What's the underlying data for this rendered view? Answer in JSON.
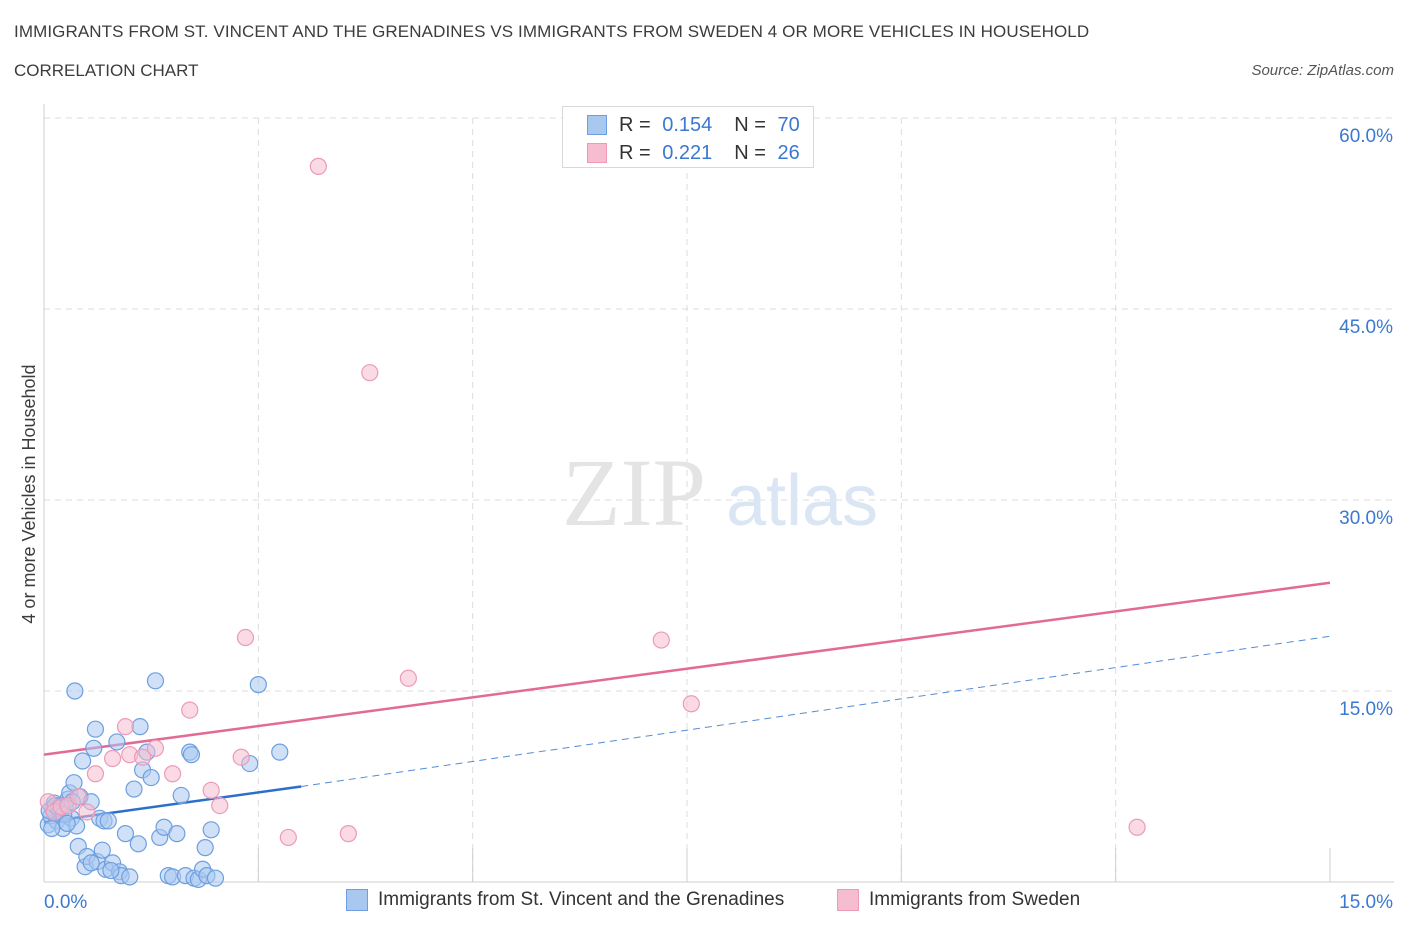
{
  "title": "IMMIGRANTS FROM ST. VINCENT AND THE GRENADINES VS IMMIGRANTS FROM SWEDEN 4 OR MORE VEHICLES IN HOUSEHOLD",
  "subtitle": "CORRELATION CHART",
  "source": "Source: ZipAtlas.com",
  "watermark": {
    "zip": "ZIP",
    "atlas": "atlas"
  },
  "legend_stats": [
    {
      "r_label": "R =",
      "r_value": "0.154",
      "n_label": "N =",
      "n_value": "70"
    },
    {
      "r_label": "R =",
      "r_value": "0.221",
      "n_label": "N =",
      "n_value": "26"
    }
  ],
  "colors": {
    "blue_fill": "#a9c8f0",
    "blue_stroke": "#6d9fe0",
    "blue_line": "#2b6fca",
    "pink_fill": "#f6bdd0",
    "pink_stroke": "#ec9ab8",
    "pink_line": "#e36a97",
    "axis_text": "#3b78d0",
    "grid": "#dcdcdc"
  },
  "chart_data": {
    "type": "scatter",
    "ylabel": "4 or more Vehicles in Household",
    "xlim": [
      0,
      15
    ],
    "ylim": [
      0,
      60
    ],
    "x_tick_labels": [
      "0.0%",
      "15.0%"
    ],
    "y_tick_labels": [
      "15.0%",
      "30.0%",
      "45.0%",
      "60.0%"
    ],
    "y_ticks": [
      15,
      30,
      45,
      60
    ],
    "grid": true,
    "series": [
      {
        "name": "Immigrants from St. Vincent and the Grenadines",
        "color": "blue",
        "points": [
          [
            0.05,
            4.5
          ],
          [
            0.08,
            5.2
          ],
          [
            0.1,
            5.8
          ],
          [
            0.12,
            6.2
          ],
          [
            0.15,
            4.8
          ],
          [
            0.18,
            5.5
          ],
          [
            0.2,
            6.0
          ],
          [
            0.22,
            4.2
          ],
          [
            0.25,
            5.9
          ],
          [
            0.28,
            6.5
          ],
          [
            0.3,
            7.0
          ],
          [
            0.32,
            5.0
          ],
          [
            0.35,
            7.8
          ],
          [
            0.38,
            4.4
          ],
          [
            0.4,
            2.8
          ],
          [
            0.42,
            6.7
          ],
          [
            0.45,
            9.5
          ],
          [
            0.48,
            1.2
          ],
          [
            0.5,
            2.0
          ],
          [
            0.55,
            6.3
          ],
          [
            0.6,
            12.0
          ],
          [
            0.62,
            1.6
          ],
          [
            0.65,
            5.0
          ],
          [
            0.7,
            4.8
          ],
          [
            0.72,
            1.0
          ],
          [
            0.75,
            4.8
          ],
          [
            0.8,
            1.5
          ],
          [
            0.85,
            11.0
          ],
          [
            0.88,
            0.8
          ],
          [
            0.9,
            0.5
          ],
          [
            0.95,
            3.8
          ],
          [
            1.0,
            0.4
          ],
          [
            1.05,
            7.3
          ],
          [
            1.1,
            3.0
          ],
          [
            1.12,
            12.2
          ],
          [
            1.15,
            8.8
          ],
          [
            1.2,
            10.2
          ],
          [
            1.25,
            8.2
          ],
          [
            1.3,
            15.8
          ],
          [
            1.35,
            3.5
          ],
          [
            1.4,
            4.3
          ],
          [
            1.45,
            0.5
          ],
          [
            1.5,
            0.4
          ],
          [
            1.55,
            3.8
          ],
          [
            1.6,
            6.8
          ],
          [
            1.65,
            0.5
          ],
          [
            1.7,
            10.2
          ],
          [
            1.72,
            10.0
          ],
          [
            1.75,
            0.3
          ],
          [
            1.8,
            0.2
          ],
          [
            1.85,
            1.0
          ],
          [
            1.88,
            2.7
          ],
          [
            1.9,
            0.5
          ],
          [
            1.95,
            4.1
          ],
          [
            2.0,
            0.3
          ],
          [
            2.4,
            9.3
          ],
          [
            2.5,
            15.5
          ],
          [
            2.75,
            10.2
          ],
          [
            0.06,
            5.6
          ],
          [
            0.09,
            4.2
          ],
          [
            0.13,
            6.0
          ],
          [
            0.17,
            5.8
          ],
          [
            0.23,
            5.3
          ],
          [
            0.27,
            4.6
          ],
          [
            0.33,
            6.3
          ],
          [
            0.55,
            1.5
          ],
          [
            0.68,
            2.5
          ],
          [
            0.78,
            0.9
          ],
          [
            0.36,
            15.0
          ],
          [
            0.58,
            10.5
          ]
        ]
      },
      {
        "name": "Immigrants from Sweden",
        "color": "pink",
        "points": [
          [
            0.05,
            6.3
          ],
          [
            0.12,
            5.5
          ],
          [
            0.2,
            5.9
          ],
          [
            0.28,
            6.0
          ],
          [
            0.4,
            6.7
          ],
          [
            0.5,
            5.5
          ],
          [
            0.6,
            8.5
          ],
          [
            0.8,
            9.7
          ],
          [
            0.95,
            12.2
          ],
          [
            1.0,
            10.0
          ],
          [
            1.15,
            9.8
          ],
          [
            1.3,
            10.5
          ],
          [
            1.5,
            8.5
          ],
          [
            1.7,
            13.5
          ],
          [
            1.95,
            7.2
          ],
          [
            2.05,
            6.0
          ],
          [
            2.3,
            9.8
          ],
          [
            2.35,
            19.2
          ],
          [
            2.85,
            3.5
          ],
          [
            3.2,
            56.2
          ],
          [
            3.55,
            3.8
          ],
          [
            3.8,
            40.0
          ],
          [
            4.25,
            16.0
          ],
          [
            7.2,
            19.0
          ],
          [
            7.55,
            14.0
          ],
          [
            12.75,
            4.3
          ]
        ]
      }
    ],
    "trend_lines": [
      {
        "series": "Immigrants from St. Vincent and the Grenadines",
        "x_range": [
          0,
          3.0
        ],
        "y_range": [
          4.7,
          7.5
        ],
        "style": "solid",
        "extended_x_range": [
          3.0,
          15
        ],
        "extended_y_range": [
          7.5,
          19.3
        ],
        "extended_style": "dashed"
      },
      {
        "series": "Immigrants from Sweden",
        "x_range": [
          0,
          15
        ],
        "y_range": [
          10.0,
          23.5
        ],
        "style": "solid"
      }
    ]
  }
}
